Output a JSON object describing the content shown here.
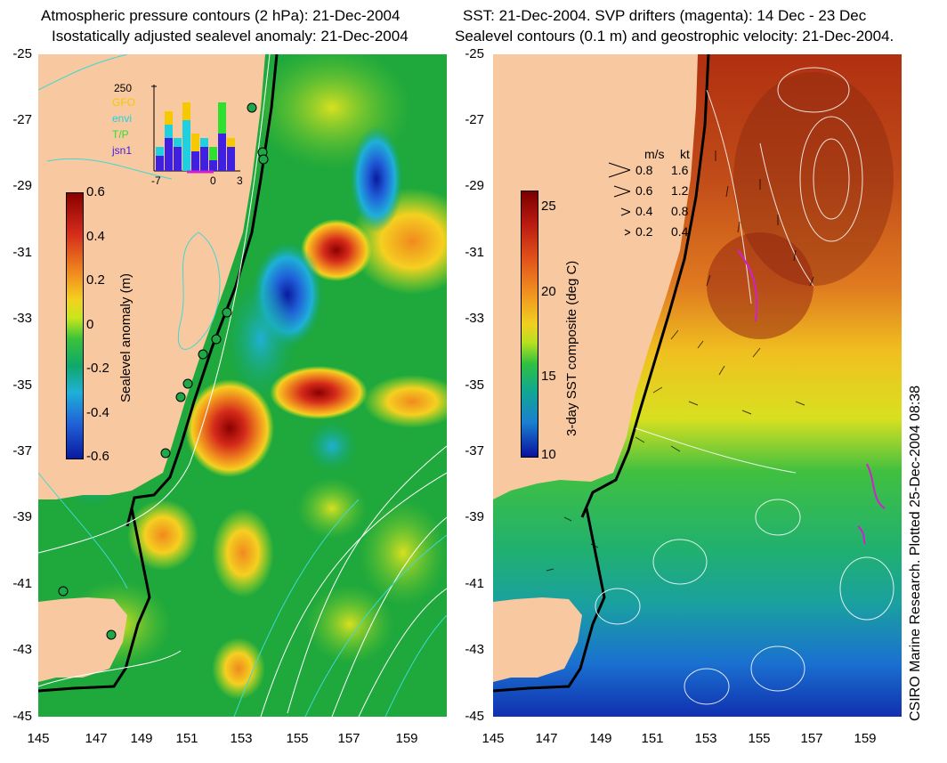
{
  "left_panel": {
    "title_line1": "Atmospheric pressure contours (2 hPa): 21-Dec-2004",
    "title_line2": "Isostatically adjusted sealevel anomaly: 21-Dec-2004",
    "y_ticks": [
      "-25",
      "-27",
      "-29",
      "-31",
      "-33",
      "-35",
      "-37",
      "-39",
      "-41",
      "-43",
      "-45"
    ],
    "x_ticks": [
      "145",
      "147",
      "149",
      "151",
      "153",
      "155",
      "157",
      "159"
    ],
    "colorbar": {
      "label": "Sealevel anomaly (m)",
      "ticks": [
        "0.6",
        "0.4",
        "0.2",
        "0",
        "-0.2",
        "-0.4",
        "-0.6"
      ],
      "colors": [
        "#8b0000",
        "#d42a1a",
        "#f08a1e",
        "#f5d020",
        "#c8e61c",
        "#3ac23a",
        "#0fa86a",
        "#1fb0d8",
        "#2060d8",
        "#0a1aa0"
      ]
    },
    "inset": {
      "top_value": "250",
      "legend": [
        {
          "label": "GFO",
          "color": "#f5c800"
        },
        {
          "label": "envi",
          "color": "#20d0e0"
        },
        {
          "label": "T/P",
          "color": "#30e030"
        },
        {
          "label": "jsn1",
          "color": "#4020e0"
        }
      ],
      "x_ticks": [
        "-7",
        "0",
        "3"
      ]
    }
  },
  "right_panel": {
    "title_line1": "SST: 21-Dec-2004. SVP drifters (magenta): 14 Dec - 23 Dec",
    "title_line2": "Sealevel contours (0.1 m) and geostrophic velocity: 21-Dec-2004.",
    "y_ticks": [
      "-25",
      "-27",
      "-29",
      "-31",
      "-33",
      "-35",
      "-37",
      "-39",
      "-41",
      "-43",
      "-45"
    ],
    "x_ticks": [
      "145",
      "147",
      "149",
      "151",
      "153",
      "155",
      "157",
      "159"
    ],
    "colorbar": {
      "label": "3-day SST composite (deg C)",
      "ticks": [
        "25",
        "20",
        "15",
        "10"
      ],
      "colors": [
        "#7a0000",
        "#b81a10",
        "#e0501a",
        "#f09020",
        "#f0d020",
        "#b8e020",
        "#30c040",
        "#10a890",
        "#1a80d0",
        "#0a10a0"
      ]
    },
    "speed_legend": {
      "header_ms": "m/s",
      "header_kt": "kt",
      "rows": [
        {
          "ms": "0.8",
          "kt": "1.6"
        },
        {
          "ms": "0.6",
          "kt": "1.2"
        },
        {
          "ms": "0.4",
          "kt": "0.8"
        },
        {
          "ms": "0.2",
          "kt": "0.4"
        }
      ]
    }
  },
  "credit": "CSIRO Marine Research. Plotted 25-Dec-2004 08:38",
  "colors": {
    "land": "#f8c8a0",
    "contour_white": "#ffffff",
    "contour_cyan": "#40d8d0",
    "coast": "#000000",
    "drifter": "#d020d0"
  }
}
